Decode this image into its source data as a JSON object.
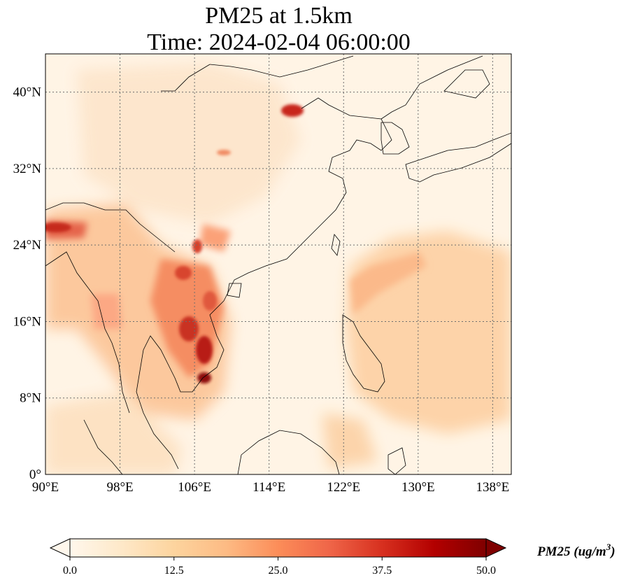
{
  "title": {
    "line1": "PM25 at 1.5km",
    "line2": "Time: 2024-02-04 06:00:00"
  },
  "map": {
    "lon_range": [
      90,
      140
    ],
    "lat_range": [
      0,
      44
    ],
    "lon_ticks": [
      "90°E",
      "98°E",
      "106°E",
      "114°E",
      "122°E",
      "130°E",
      "138°E"
    ],
    "lat_ticks": [
      "0°",
      "8°N",
      "16°N",
      "24°N",
      "32°N",
      "40°N"
    ],
    "gridlines": true,
    "coastlines": true,
    "borders": true
  },
  "colorbar": {
    "colormap": "OrRd",
    "colors": [
      "#fff7ec",
      "#fee8c8",
      "#fdd49e",
      "#fdbb84",
      "#fc8d59",
      "#ef6548",
      "#d7301f",
      "#b30000",
      "#7f0000"
    ],
    "range": [
      0,
      50
    ],
    "extend": "both",
    "tick_labels": [
      "0.0",
      "12.5",
      "25.0",
      "37.5",
      "50.0"
    ],
    "label_prefix": "PM25 (ug/m",
    "label_sup": "3",
    "label_suffix": ")"
  }
}
